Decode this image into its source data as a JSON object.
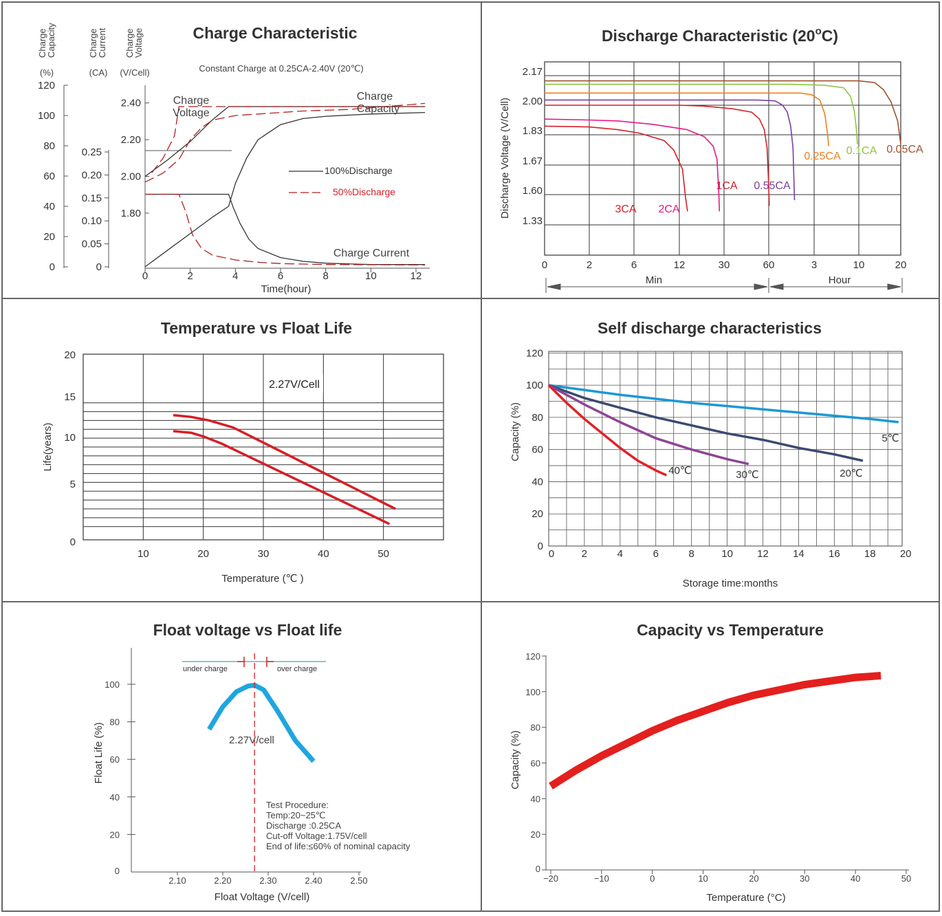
{
  "charts": [
    {
      "title": "Charge Characteristic",
      "subtitle": "Constant Charge at 0.25CA-2.40V  (20℃)",
      "xlabel": "Time(hour)",
      "capacity_axis": {
        "header": [
          "Charge",
          "Capacity"
        ],
        "unit": "(%)",
        "ticks": [
          0,
          20,
          40,
          60,
          80,
          100,
          120
        ],
        "tick_labels": [
          "0",
          "20",
          "40",
          "60",
          "80",
          "100",
          "120"
        ],
        "range": [
          0,
          120
        ]
      },
      "current_axis": {
        "header": [
          "Charge",
          "Current"
        ],
        "unit": "(CA)",
        "ticks": [
          0,
          0.05,
          0.1,
          0.15,
          0.2,
          0.25
        ],
        "tick_labels": [
          "0",
          "0.05",
          "0.10",
          "0.15",
          "0.20",
          "0.25"
        ],
        "range": [
          0,
          0.25
        ]
      },
      "voltage_axis": {
        "header": [
          "Charge",
          "Voltage"
        ],
        "unit": "(V/Cell)",
        "ticks": [
          1.8,
          2.0,
          2.2,
          2.4
        ],
        "tick_labels": [
          "1.80",
          "2.00",
          "2.20",
          "2.40"
        ],
        "range": [
          1.5,
          2.5
        ]
      },
      "x_ticks": [
        0,
        2,
        4,
        6,
        8,
        10,
        12
      ],
      "x_tick_labels": [
        "0",
        "2",
        "4",
        "6",
        "8",
        "10",
        "12"
      ],
      "annotations": [
        {
          "lines": [
            "Charge",
            "Voltage"
          ]
        },
        {
          "lines": [
            "Charge",
            "Capacity"
          ]
        },
        {
          "lines": [
            "Charge Current"
          ]
        }
      ],
      "legend": [
        {
          "label": "100%Discharge",
          "color": "#333333",
          "style": "solid"
        },
        {
          "label": "50%Discharge",
          "color": "#d41f26",
          "style": "dashed"
        }
      ],
      "chart_data": {
        "type": "line",
        "xlim": [
          0,
          12.5
        ],
        "series": [
          {
            "group": "100%Discharge",
            "quantity": "voltage",
            "axis": "voltage",
            "color": "#333333",
            "dashed": false,
            "x": [
              0,
              1,
              2,
              3,
              3.7,
              12.4
            ],
            "y": [
              2.0,
              2.09,
              2.19,
              2.31,
              2.38,
              2.38
            ]
          },
          {
            "group": "100%Discharge",
            "quantity": "current",
            "axis": "current",
            "color": "#333333",
            "dashed": false,
            "x": [
              0,
              3.7,
              3.9,
              4.2,
              4.6,
              5,
              6,
              7,
              8,
              10,
              12.4
            ],
            "y": [
              0.158,
              0.158,
              0.13,
              0.095,
              0.06,
              0.04,
              0.02,
              0.012,
              0.008,
              0.005,
              0.005
            ]
          },
          {
            "group": "100%Discharge",
            "quantity": "capacity",
            "axis": "capacity",
            "color": "#333333",
            "dashed": false,
            "x": [
              0,
              1,
              2,
              3,
              3.7,
              4,
              4.5,
              5,
              6,
              7,
              8,
              10,
              12.4
            ],
            "y": [
              0,
              11,
              22,
              33,
              40,
              55,
              72,
              84,
              94,
              98,
              99.5,
              101,
              102
            ]
          },
          {
            "group": "50%Discharge",
            "quantity": "voltage",
            "axis": "voltage",
            "color": "#b31f1f",
            "dashed": true,
            "x": [
              0.3,
              0.8,
              1.3,
              1.5,
              12.4
            ],
            "y": [
              2.02,
              2.1,
              2.22,
              2.38,
              2.38
            ]
          },
          {
            "group": "50%Discharge",
            "quantity": "current",
            "axis": "current",
            "color": "#b31f1f",
            "dashed": true,
            "x": [
              0,
              1.5,
              1.8,
              2.1,
              2.5,
              3,
              4,
              5,
              6,
              8,
              12.4
            ],
            "y": [
              0.158,
              0.158,
              0.12,
              0.07,
              0.04,
              0.025,
              0.015,
              0.01,
              0.007,
              0.005,
              0.004
            ]
          },
          {
            "group": "50%Discharge",
            "quantity": "capacity",
            "axis": "capacity",
            "color": "#b31f1f",
            "dashed": true,
            "x": [
              0,
              0.8,
              1.5,
              2,
              2.5,
              3,
              4,
              5,
              7,
              9,
              12.4
            ],
            "y": [
              56,
              62,
              71,
              84,
              92,
              97,
              100,
              101,
              103,
              104,
              108
            ]
          }
        ]
      }
    },
    {
      "title_parts": [
        "Discharge Characteristic (20",
        "o",
        "C)"
      ],
      "ylabel": "Discharge Voltage (V/Cell)",
      "x_ranges": [
        "Min",
        "Hour"
      ],
      "x_tick_labels": [
        "0",
        "2",
        "6",
        "12",
        "30",
        "60",
        "3",
        "10",
        "20"
      ],
      "y_ticks": [
        2.17,
        2.0,
        1.83,
        1.67,
        1.6,
        1.33
      ],
      "y_tick_labels": [
        "2.17",
        "2.00",
        "1.83",
        "1.67",
        "1.60",
        "1.33"
      ],
      "chart_data": {
        "type": "line",
        "x_unit": "minutes",
        "series": [
          {
            "name": "3CA",
            "color": "#d42027",
            "x": [
              0,
              2,
              4,
              6.5,
              9.5,
              11,
              12.8,
              13.6,
              14.2
            ],
            "y": [
              1.88,
              1.875,
              1.86,
              1.84,
              1.8,
              1.75,
              1.66,
              1.58,
              1.45
            ]
          },
          {
            "name": "2CA",
            "color": "#e6178a",
            "x": [
              0,
              2,
              4,
              8,
              14,
              20,
              24,
              26,
              27,
              27.3
            ],
            "y": [
              1.92,
              1.915,
              1.91,
              1.89,
              1.86,
              1.82,
              1.77,
              1.7,
              1.6,
              1.45
            ]
          },
          {
            "name": "1CA",
            "color": "#d42027",
            "x": [
              0,
              2,
              6,
              12,
              20,
              34,
              46,
              52,
              56,
              58.5,
              60,
              60.8
            ],
            "y": [
              2.0,
              2.0,
              2.0,
              2.0,
              1.995,
              1.98,
              1.96,
              1.92,
              1.86,
              1.76,
              1.62,
              1.5
            ]
          },
          {
            "name": "0.55CA",
            "color": "#7a3fa0",
            "x": [
              0,
              20,
              50,
              70,
              84,
              94,
              102,
              108,
              112
            ],
            "y": [
              2.03,
              2.03,
              2.03,
              2.025,
              2.0,
              1.96,
              1.88,
              1.76,
              1.55
            ]
          },
          {
            "name": "0.25CA",
            "color": "#f0801f",
            "x": [
              0,
              60,
              130,
              170,
              210,
              240,
              258,
              266
            ],
            "y": [
              2.07,
              2.07,
              2.07,
              2.06,
              2.03,
              1.95,
              1.84,
              1.77
            ]
          },
          {
            "name": "0.1CA",
            "color": "#8cc63f",
            "x": [
              0,
              100,
              240,
              400,
              480,
              530,
              560,
              578
            ],
            "y": [
              2.12,
              2.12,
              2.115,
              2.1,
              2.05,
              1.97,
              1.87,
              1.78
            ]
          },
          {
            "name": "0.05CA",
            "color": "#a0522d",
            "x": [
              0,
              300,
              600,
              780,
              900,
              1020,
              1140,
              1200
            ],
            "y": [
              2.14,
              2.14,
              2.14,
              2.13,
              2.09,
              2.02,
              1.91,
              1.78
            ]
          }
        ]
      }
    },
    {
      "title": "Temperature vs Float Life",
      "xlabel": "Temperature (℃ )",
      "ylabel": "Life(years)",
      "annotation": "2.27V/Cell",
      "x_ticks": [
        10,
        20,
        30,
        40,
        50
      ],
      "x_tick_labels": [
        "10",
        "20",
        "30",
        "40",
        "50"
      ],
      "y_ticks": [
        0,
        5,
        10,
        15,
        20
      ],
      "y_tick_labels": [
        "0",
        "5",
        "10",
        "15",
        "20"
      ],
      "chart_data": {
        "type": "line",
        "xlim": [
          0,
          60
        ],
        "ylim": [
          -0.5,
          20.5
        ],
        "series": [
          {
            "color": "#d71e27",
            "x": [
              15,
              18,
              21,
              25,
              52
            ],
            "y": [
              13.6,
              13.4,
              13.0,
              12.2,
              3.0
            ]
          },
          {
            "color": "#d71e27",
            "x": [
              15,
              18,
              20,
              23,
              51
            ],
            "y": [
              11.8,
              11.6,
              11.2,
              10.4,
              1.3
            ]
          }
        ]
      }
    },
    {
      "title": "Self discharge characteristics",
      "xlabel": "Storage time:months",
      "ylabel": "Capacity (%)",
      "x_ticks": [
        0,
        2,
        4,
        6,
        8,
        10,
        12,
        14,
        16,
        18,
        20
      ],
      "x_tick_labels": [
        "0",
        "2",
        "4",
        "6",
        "8",
        "10",
        "12",
        "14",
        "16",
        "18",
        "20"
      ],
      "y_ticks": [
        0,
        20,
        40,
        60,
        80,
        100,
        120
      ],
      "y_tick_labels": [
        "0",
        "20",
        "40",
        "60",
        "80",
        "100",
        "120"
      ],
      "chart_data": {
        "type": "line",
        "xlim": [
          0,
          19.8
        ],
        "ylim": [
          0,
          121
        ],
        "series": [
          {
            "name": "5℃",
            "color": "#1c99d4",
            "x": [
              0,
              2,
              4,
              8,
              10,
              14,
              18,
              19.6
            ],
            "y": [
              100,
              97,
              94,
              89,
              87,
              83,
              79,
              77
            ]
          },
          {
            "name": "20℃",
            "color": "#3b4a70",
            "x": [
              0,
              2,
              4,
              6,
              8,
              10,
              12,
              14,
              16,
              17.6
            ],
            "y": [
              100,
              92,
              86,
              80,
              75,
              70,
              66,
              61,
              57,
              53
            ]
          },
          {
            "name": "30℃",
            "color": "#8e4493",
            "x": [
              0,
              2,
              4,
              6,
              8,
              10,
              11.2
            ],
            "y": [
              100,
              88,
              77,
              67,
              60,
              54,
              51
            ]
          },
          {
            "name": "40℃",
            "color": "#e22126",
            "x": [
              0,
              1,
              2,
              3,
              4,
              5,
              6,
              6.6
            ],
            "y": [
              100,
              89,
              79,
              70,
              61,
              53,
              47,
              44
            ]
          }
        ],
        "labels": [
          "40℃",
          "30℃",
          "20℃",
          "5℃"
        ]
      }
    },
    {
      "title": "Float voltage vs Float life",
      "xlabel": "Float Voltage (V/cell)",
      "ylabel": "Float Life (%)",
      "annotation": "2.27V/cell",
      "zone_labels": [
        "under charge",
        "over charge"
      ],
      "notes": [
        "Test Procedure:",
        "Temp:20~25℃",
        "Discharge :0.25CA",
        "Cut-off Voltage:1.75V/cell",
        "End of life:≤60% of nominal capacity"
      ],
      "x_ticks": [
        2.1,
        2.2,
        2.3,
        2.4,
        2.5
      ],
      "x_tick_labels": [
        "2.10",
        "2.20",
        "2.30",
        "2.40",
        "2.50"
      ],
      "y_ticks": [
        0,
        20,
        40,
        60,
        80,
        100
      ],
      "y_tick_labels": [
        "0",
        "20",
        "40",
        "60",
        "80",
        "100"
      ],
      "chart_data": {
        "type": "line",
        "xlim": [
          1.985,
          2.51
        ],
        "ylim": [
          0,
          124
        ],
        "reference_x": 2.27,
        "series": [
          {
            "color": "#1ea6e0",
            "x": [
              2.17,
              2.2,
              2.23,
              2.255,
              2.27,
              2.29,
              2.32,
              2.36,
              2.4
            ],
            "y": [
              76,
              88,
              96,
              99,
              99.5,
              97,
              86,
              70,
              59
            ]
          }
        ]
      }
    },
    {
      "title": "Capacity vs Temperature",
      "xlabel": "Temperature (°C)",
      "ylabel": "Capacity (%)",
      "x_ticks": [
        -20,
        -10,
        0,
        10,
        20,
        30,
        40,
        50
      ],
      "x_tick_labels": [
        "−20",
        "−10",
        "0",
        "10",
        "20",
        "30",
        "40",
        "50"
      ],
      "y_ticks": [
        0,
        20,
        40,
        60,
        80,
        100,
        120
      ],
      "y_tick_labels": [
        "0",
        "20",
        "40",
        "60",
        "80",
        "100",
        "120"
      ],
      "chart_data": {
        "type": "line",
        "xlim": [
          -21,
          51
        ],
        "ylim": [
          0,
          122
        ],
        "series": [
          {
            "color": "#e3201e",
            "x": [
              -20,
              -15,
              -10,
              -5,
              0,
              5,
              10,
              15,
              20,
              25,
              30,
              35,
              40,
              45
            ],
            "y": [
              47,
              56,
              64,
              71,
              78,
              84,
              89,
              94,
              98,
              101,
              104,
              106,
              108,
              109
            ]
          }
        ]
      }
    }
  ]
}
